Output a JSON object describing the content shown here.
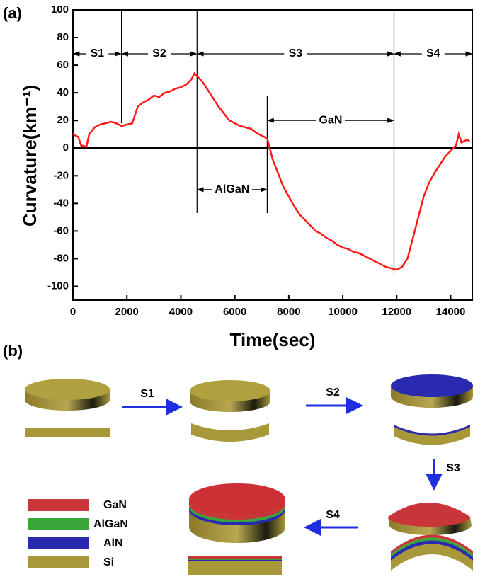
{
  "chart_data": {
    "type": "line",
    "panel_label": "(a)",
    "xlabel": "Time(sec)",
    "ylabel": "Curvature(km⁻¹)",
    "x": [
      0,
      200,
      300,
      500,
      600,
      800,
      1000,
      1200,
      1400,
      1600,
      1800,
      2000,
      2200,
      2400,
      2600,
      2800,
      3000,
      3200,
      3400,
      3600,
      3800,
      4000,
      4200,
      4400,
      4500,
      4600,
      4800,
      5000,
      5200,
      5400,
      5600,
      5800,
      6000,
      6200,
      6400,
      6600,
      6800,
      7000,
      7200,
      7400,
      7600,
      7800,
      8000,
      8200,
      8400,
      8600,
      8800,
      9000,
      9200,
      9400,
      9600,
      9800,
      10000,
      10200,
      10400,
      10600,
      10800,
      11000,
      11200,
      11400,
      11600,
      11800,
      12000,
      12200,
      12400,
      12600,
      12800,
      13000,
      13200,
      13400,
      13600,
      13800,
      14000,
      14200,
      14300,
      14400,
      14600,
      14700
    ],
    "values": [
      10,
      8,
      2,
      1,
      10,
      15,
      17,
      18,
      19,
      18,
      16,
      17,
      18,
      30,
      33,
      35,
      38,
      37,
      40,
      41,
      43,
      44,
      46,
      50,
      54,
      52,
      48,
      42,
      36,
      30,
      25,
      20,
      18,
      16,
      15,
      14,
      11,
      9,
      7,
      -8,
      -18,
      -28,
      -35,
      -42,
      -48,
      -52,
      -56,
      -60,
      -62,
      -65,
      -67,
      -70,
      -72,
      -73,
      -75,
      -76,
      -78,
      -80,
      -82,
      -84,
      -86,
      -87,
      -88,
      -86,
      -80,
      -65,
      -50,
      -35,
      -25,
      -18,
      -12,
      -6,
      -2,
      2,
      10,
      4,
      6,
      5
    ],
    "color": "#ff1a1a",
    "xlim": [
      0,
      14800
    ],
    "ylim": [
      -110,
      100
    ],
    "xticks": [
      0,
      2000,
      4000,
      6000,
      8000,
      10000,
      12000,
      14000
    ],
    "yticks": [
      -100,
      -80,
      -60,
      -40,
      -20,
      0,
      20,
      40,
      60,
      80,
      100
    ],
    "vlines": [
      {
        "x": 1800,
        "y": [
          100,
          18
        ]
      },
      {
        "x": 4600,
        "y": [
          100,
          -47
        ]
      },
      {
        "x": 7200,
        "y": [
          38,
          -47
        ]
      },
      {
        "x": 11900,
        "y": [
          100,
          -90
        ]
      }
    ],
    "phases": [
      "S1",
      "S2",
      "S3",
      "S4"
    ],
    "layers": [
      "AlGaN",
      "GaN"
    ]
  },
  "diagram": {
    "panel_label": "(b)",
    "steps": [
      "S1",
      "S2",
      "S3",
      "S4"
    ],
    "legend": [
      {
        "label": "GaN",
        "color": "#c8363a"
      },
      {
        "label": "AlGaN",
        "color": "#3aa63a"
      },
      {
        "label": "AlN",
        "color": "#2a2ab0"
      },
      {
        "label": "Si",
        "color": "#a8983a"
      }
    ]
  }
}
